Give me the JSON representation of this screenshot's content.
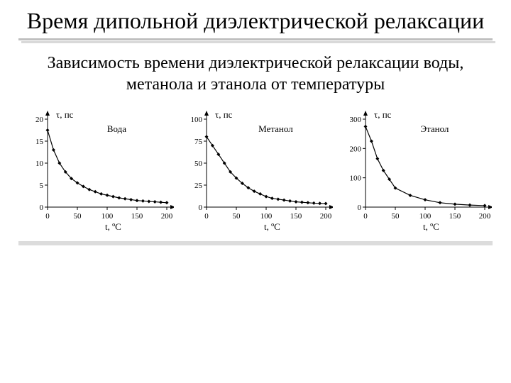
{
  "title": "Время дипольной диэлектрической релаксации",
  "subtitle": "Зависимость времени диэлектрической релаксации воды, метанола и этанола от температуры",
  "axis_style": {
    "axis_color": "#000000",
    "grid_color": "#ffffff",
    "line_color": "#000000",
    "marker": "diamond",
    "marker_fill": "#000000",
    "marker_size": 5,
    "line_width": 1.2,
    "tick_fontsize": 11,
    "label_fontsize": 13,
    "series_label_fontsize": 13,
    "ylabel": "τ,  пс",
    "xlabel": "t, ºC",
    "background_color": "#ffffff"
  },
  "charts": [
    {
      "name": "water",
      "series_label": "Вода",
      "xlim": [
        0,
        200
      ],
      "ylim": [
        0,
        20
      ],
      "xticks": [
        0,
        50,
        100,
        150,
        200
      ],
      "yticks": [
        0,
        5,
        10,
        15,
        20
      ],
      "points": [
        {
          "x": 0,
          "y": 17.5
        },
        {
          "x": 10,
          "y": 13.0
        },
        {
          "x": 20,
          "y": 10.0
        },
        {
          "x": 30,
          "y": 8.0
        },
        {
          "x": 40,
          "y": 6.5
        },
        {
          "x": 50,
          "y": 5.5
        },
        {
          "x": 60,
          "y": 4.7
        },
        {
          "x": 70,
          "y": 4.0
        },
        {
          "x": 80,
          "y": 3.5
        },
        {
          "x": 90,
          "y": 3.0
        },
        {
          "x": 100,
          "y": 2.7
        },
        {
          "x": 110,
          "y": 2.4
        },
        {
          "x": 120,
          "y": 2.1
        },
        {
          "x": 130,
          "y": 1.9
        },
        {
          "x": 140,
          "y": 1.7
        },
        {
          "x": 150,
          "y": 1.5
        },
        {
          "x": 160,
          "y": 1.4
        },
        {
          "x": 170,
          "y": 1.3
        },
        {
          "x": 180,
          "y": 1.2
        },
        {
          "x": 190,
          "y": 1.1
        },
        {
          "x": 200,
          "y": 1.0
        }
      ]
    },
    {
      "name": "methanol",
      "series_label": "Метанол",
      "xlim": [
        0,
        200
      ],
      "ylim": [
        0,
        100
      ],
      "xticks": [
        0,
        50,
        100,
        150,
        200
      ],
      "yticks": [
        0,
        25,
        50,
        75,
        100
      ],
      "points": [
        {
          "x": 0,
          "y": 80
        },
        {
          "x": 10,
          "y": 70
        },
        {
          "x": 20,
          "y": 60
        },
        {
          "x": 30,
          "y": 50
        },
        {
          "x": 40,
          "y": 40
        },
        {
          "x": 50,
          "y": 33
        },
        {
          "x": 60,
          "y": 27
        },
        {
          "x": 70,
          "y": 22
        },
        {
          "x": 80,
          "y": 18
        },
        {
          "x": 90,
          "y": 15
        },
        {
          "x": 100,
          "y": 12
        },
        {
          "x": 110,
          "y": 10
        },
        {
          "x": 120,
          "y": 9
        },
        {
          "x": 130,
          "y": 8
        },
        {
          "x": 140,
          "y": 7
        },
        {
          "x": 150,
          "y": 6
        },
        {
          "x": 160,
          "y": 5.5
        },
        {
          "x": 170,
          "y": 5
        },
        {
          "x": 180,
          "y": 4.5
        },
        {
          "x": 190,
          "y": 4.2
        },
        {
          "x": 200,
          "y": 4
        }
      ]
    },
    {
      "name": "ethanol",
      "series_label": "Этанол",
      "xlim": [
        0,
        200
      ],
      "ylim": [
        0,
        300
      ],
      "xticks": [
        0,
        50,
        100,
        150,
        200
      ],
      "yticks": [
        0,
        100,
        200,
        300
      ],
      "points": [
        {
          "x": 0,
          "y": 275
        },
        {
          "x": 10,
          "y": 225
        },
        {
          "x": 20,
          "y": 165
        },
        {
          "x": 30,
          "y": 125
        },
        {
          "x": 40,
          "y": 95
        },
        {
          "x": 50,
          "y": 65
        },
        {
          "x": 75,
          "y": 40
        },
        {
          "x": 100,
          "y": 25
        },
        {
          "x": 125,
          "y": 15
        },
        {
          "x": 150,
          "y": 10
        },
        {
          "x": 175,
          "y": 7
        },
        {
          "x": 200,
          "y": 5
        }
      ]
    }
  ]
}
